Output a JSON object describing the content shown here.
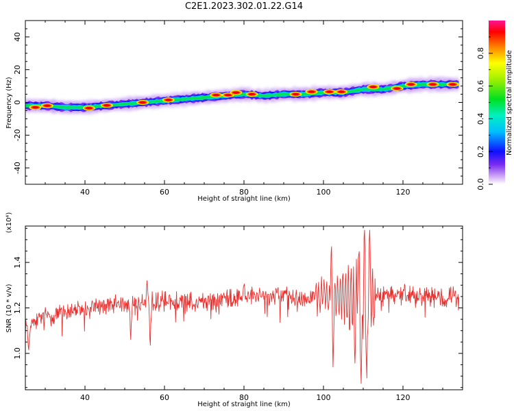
{
  "title": "C2E1.2023.302.01.22.G14",
  "chart_data": [
    {
      "type": "heatmap",
      "name": "spectrogram",
      "xlabel": "Height of straight line (km)",
      "ylabel": "Frequency (Hz)",
      "xlim": [
        25,
        135
      ],
      "ylim": [
        -50,
        50
      ],
      "xticks": [
        40,
        60,
        80,
        100,
        120
      ],
      "yticks": [
        -40,
        -20,
        0,
        20,
        40
      ],
      "colorbar": {
        "label": "Normalized spectral amplitude",
        "range": [
          0.0,
          1.0
        ],
        "ticks": [
          "0.0",
          "0.2",
          "0.4",
          "0.6",
          "0.8"
        ]
      },
      "ridge": {
        "x": [
          25,
          30,
          35,
          40,
          45,
          50,
          55,
          60,
          65,
          70,
          75,
          80,
          85,
          90,
          95,
          100,
          105,
          110,
          115,
          120,
          125,
          130,
          134
        ],
        "y": [
          -2,
          -2,
          -3,
          -3,
          -2,
          -1,
          0,
          1,
          2,
          3,
          4,
          5,
          4,
          5,
          5,
          6,
          6,
          8,
          8,
          10,
          11,
          11,
          11
        ]
      },
      "peaks": [
        {
          "x": 27.5,
          "y": -3
        },
        {
          "x": 30.5,
          "y": -2
        },
        {
          "x": 41,
          "y": -3.5
        },
        {
          "x": 45.5,
          "y": -1.8
        },
        {
          "x": 54.5,
          "y": 0
        },
        {
          "x": 61,
          "y": 1.5
        },
        {
          "x": 73,
          "y": 4.5
        },
        {
          "x": 76,
          "y": 4.5
        },
        {
          "x": 78,
          "y": 6
        },
        {
          "x": 82,
          "y": 5
        },
        {
          "x": 93,
          "y": 5
        },
        {
          "x": 97,
          "y": 6.5
        },
        {
          "x": 101.5,
          "y": 6.5
        },
        {
          "x": 104.5,
          "y": 6.5
        },
        {
          "x": 112.5,
          "y": 9.5
        },
        {
          "x": 118.5,
          "y": 8.5
        },
        {
          "x": 122,
          "y": 11
        },
        {
          "x": 127.5,
          "y": 11
        },
        {
          "x": 132.5,
          "y": 11
        }
      ]
    },
    {
      "type": "line",
      "name": "snr",
      "xlabel": "Height of straight line (km)",
      "ylabel": "SNR (10 * v/v)",
      "multiplier": "(x10⁴)",
      "xlim": [
        25,
        135
      ],
      "ylim": [
        0.84,
        1.56
      ],
      "xticks": [
        40,
        60,
        80,
        100,
        120
      ],
      "yticks": [
        "1.0",
        "1.2",
        "1.4"
      ],
      "color": "#e8302e",
      "trend": {
        "x": [
          25,
          30,
          40,
          50,
          60,
          70,
          80,
          90,
          100,
          110,
          120,
          134
        ],
        "y": [
          1.12,
          1.16,
          1.2,
          1.22,
          1.23,
          1.23,
          1.25,
          1.25,
          1.25,
          1.25,
          1.26,
          1.25
        ]
      },
      "features": [
        {
          "x": 25.8,
          "y": 1.0
        },
        {
          "x": 51.5,
          "y": 1.05
        },
        {
          "x": 55.6,
          "y": 1.32
        },
        {
          "x": 56.4,
          "y": 1.01
        },
        {
          "x": 80,
          "y": 1.31
        },
        {
          "x": 102,
          "y": 1.5
        },
        {
          "x": 102.4,
          "y": 0.94
        },
        {
          "x": 107.9,
          "y": 0.95
        },
        {
          "x": 108.8,
          "y": 1.45
        },
        {
          "x": 109.5,
          "y": 0.84
        },
        {
          "x": 110.3,
          "y": 1.55
        },
        {
          "x": 110.9,
          "y": 0.86
        },
        {
          "x": 111.6,
          "y": 1.56
        }
      ]
    }
  ]
}
